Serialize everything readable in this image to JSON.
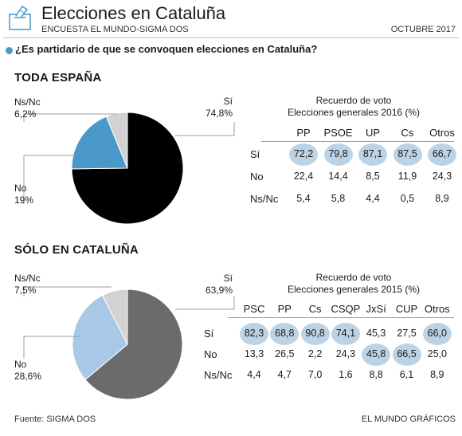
{
  "header": {
    "title": "Elecciones en Cataluña",
    "subtitle": "ENCUESTA EL MUNDO-SIGMA DOS",
    "date": "OCTUBRE 2017",
    "question": "¿Es partidario de que se convoquen elecciones en Cataluña?"
  },
  "colors": {
    "si_espana": "#000000",
    "si_cataluna": "#6b6b6b",
    "no_espana": "#4a97c9",
    "no_cataluna": "#a9c8e6",
    "nsnc": "#d2d2d2",
    "highlight": "#bcd3e6"
  },
  "icons": {
    "logo": "ballot-box-icon",
    "bullet": "bullet-dot-icon"
  },
  "chart_data": [
    {
      "type": "pie",
      "title": "TODA ESPAÑA",
      "slices": [
        {
          "label": "Sí",
          "value": 74.8,
          "display": "74,8%"
        },
        {
          "label": "No",
          "value": 19,
          "display": "19%"
        },
        {
          "label": "Ns/Nc",
          "value": 6.2,
          "display": "6,2%"
        }
      ]
    },
    {
      "type": "table",
      "title_line1": "Recuerdo de voto",
      "title_line2": "Elecciones generales 2016 (%)",
      "columns": [
        "PP",
        "PSOE",
        "UP",
        "Cs",
        "Otros"
      ],
      "rows": [
        {
          "label": "Sí",
          "values": [
            "72,2",
            "79,8",
            "87,1",
            "87,5",
            "66,7"
          ],
          "highlight": [
            true,
            true,
            true,
            true,
            true
          ]
        },
        {
          "label": "No",
          "values": [
            "22,4",
            "14,4",
            "8,5",
            "11,9",
            "24,3"
          ],
          "highlight": [
            false,
            false,
            false,
            false,
            false
          ]
        },
        {
          "label": "Ns/Nc",
          "values": [
            "5,4",
            "5,8",
            "4,4",
            "0,5",
            "8,9"
          ],
          "highlight": [
            false,
            false,
            false,
            false,
            false
          ]
        }
      ]
    },
    {
      "type": "pie",
      "title": "SÓLO EN CATALUÑA",
      "slices": [
        {
          "label": "Sí",
          "value": 63.9,
          "display": "63,9%"
        },
        {
          "label": "No",
          "value": 28.6,
          "display": "28,6%"
        },
        {
          "label": "Ns/Nc",
          "value": 7.5,
          "display": "7,5%"
        }
      ]
    },
    {
      "type": "table",
      "title_line1": "Recuerdo de voto",
      "title_line2": "Elecciones generales 2015 (%)",
      "columns": [
        "PSC",
        "PP",
        "Cs",
        "CSQP",
        "JxSí",
        "CUP",
        "Otros"
      ],
      "rows": [
        {
          "label": "Sí",
          "values": [
            "82,3",
            "68,8",
            "90,8",
            "74,1",
            "45,3",
            "27,5",
            "66,0"
          ],
          "highlight": [
            true,
            true,
            true,
            true,
            false,
            false,
            true
          ]
        },
        {
          "label": "No",
          "values": [
            "13,3",
            "26,5",
            "2,2",
            "24,3",
            "45,8",
            "66,5",
            "25,0"
          ],
          "highlight": [
            false,
            false,
            false,
            false,
            true,
            true,
            false
          ]
        },
        {
          "label": "Ns/Nc",
          "values": [
            "4,4",
            "4,7",
            "7,0",
            "1,6",
            "8,8",
            "6,1",
            "8,9"
          ],
          "highlight": [
            false,
            false,
            false,
            false,
            false,
            false,
            false
          ]
        }
      ]
    }
  ],
  "footer": {
    "source": "Fuente: SIGMA DOS",
    "credit": "EL MUNDO GRÁFICOS"
  }
}
